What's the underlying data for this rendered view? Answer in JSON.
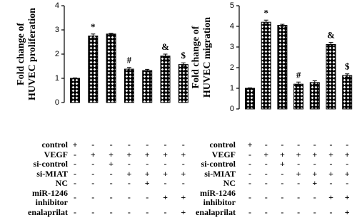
{
  "chart_data": [
    {
      "type": "bar",
      "ylabel": [
        "Fold change of",
        "HUVEC proliferation"
      ],
      "values": [
        1.0,
        2.75,
        2.83,
        1.38,
        1.32,
        1.92,
        1.57
      ],
      "errors": [
        0.02,
        0.08,
        0.03,
        0.07,
        0.05,
        0.08,
        0.07
      ],
      "annotations": [
        null,
        "*",
        null,
        "#",
        null,
        "&",
        "$"
      ],
      "color": "#000000",
      "ylim": [
        0,
        4
      ],
      "yticks": [
        0,
        1,
        2,
        3,
        4
      ],
      "conditions": [
        {
          "label": [
            "control"
          ],
          "signs": [
            "+",
            "-",
            "-",
            "-",
            "-",
            "-",
            "-"
          ]
        },
        {
          "label": [
            "VEGF"
          ],
          "signs": [
            "-",
            "+",
            "+",
            "+",
            "+",
            "+",
            "+"
          ]
        },
        {
          "label": [
            "si-control"
          ],
          "signs": [
            "-",
            "-",
            "+",
            "-",
            "-",
            "-",
            "-"
          ]
        },
        {
          "label": [
            "si-MIAT"
          ],
          "signs": [
            "-",
            "-",
            "-",
            "+",
            "+",
            "+",
            "+"
          ]
        },
        {
          "label": [
            "NC"
          ],
          "signs": [
            "-",
            "-",
            "-",
            "-",
            "+",
            "-",
            "-"
          ]
        },
        {
          "label": [
            "miR-1246",
            "inhibitor"
          ],
          "signs": [
            "-",
            "-",
            "-",
            "-",
            "-",
            "+",
            "+"
          ]
        },
        {
          "label": [
            "enalaprilat"
          ],
          "signs": [
            "-",
            "-",
            "-",
            "-",
            "-",
            "-",
            "+"
          ]
        }
      ]
    },
    {
      "type": "bar",
      "ylabel": [
        "Fold change of",
        "HUVEC migration"
      ],
      "values": [
        1.0,
        4.2,
        4.05,
        1.2,
        1.28,
        3.12,
        1.62
      ],
      "errors": [
        0.02,
        0.1,
        0.05,
        0.1,
        0.08,
        0.1,
        0.08
      ],
      "annotations": [
        null,
        "*",
        null,
        "#",
        null,
        "&",
        "$"
      ],
      "color": "#000000",
      "ylim": [
        0,
        5
      ],
      "yticks": [
        0,
        1,
        2,
        3,
        4,
        5
      ],
      "conditions": [
        {
          "label": [
            "control"
          ],
          "signs": [
            "+",
            "-",
            "-",
            "-",
            "-",
            "-",
            "-"
          ]
        },
        {
          "label": [
            "VEGF"
          ],
          "signs": [
            "-",
            "+",
            "+",
            "+",
            "+",
            "+",
            "+"
          ]
        },
        {
          "label": [
            "si-control"
          ],
          "signs": [
            "-",
            "-",
            "+",
            "-",
            "-",
            "-",
            "-"
          ]
        },
        {
          "label": [
            "si-MIAT"
          ],
          "signs": [
            "-",
            "-",
            "-",
            "+",
            "+",
            "+",
            "+"
          ]
        },
        {
          "label": [
            "NC"
          ],
          "signs": [
            "-",
            "-",
            "-",
            "-",
            "+",
            "-",
            "-"
          ]
        },
        {
          "label": [
            "miR-1246",
            "inhibitor"
          ],
          "signs": [
            "-",
            "-",
            "-",
            "-",
            "-",
            "+",
            "+"
          ]
        },
        {
          "label": [
            "enalaprilat"
          ],
          "signs": [
            "-",
            "-",
            "-",
            "-",
            "-",
            "-",
            "+"
          ]
        }
      ]
    }
  ]
}
